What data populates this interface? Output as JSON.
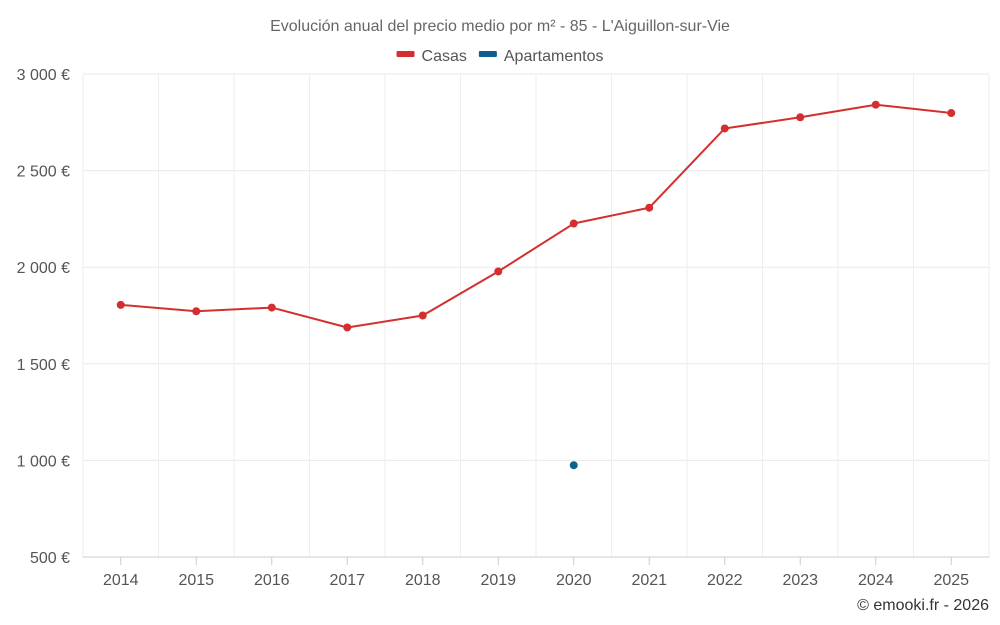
{
  "chart_data": {
    "type": "line",
    "title": "Evolución anual del precio medio por m² - 85 - L'Aiguillon-sur-Vie",
    "categories": [
      "2014",
      "2015",
      "2016",
      "2017",
      "2018",
      "2019",
      "2020",
      "2021",
      "2022",
      "2023",
      "2024",
      "2025"
    ],
    "y_tick_labels": [
      "500 €",
      "1 000 €",
      "1 500 €",
      "2 000 €",
      "2 500 €",
      "3 000 €"
    ],
    "y_tick_values": [
      500,
      1000,
      1500,
      2000,
      2500,
      3000
    ],
    "ylim": [
      500,
      3000
    ],
    "grid": true,
    "legend_position": "top-center",
    "series": [
      {
        "name": "Casas",
        "color": "#d32f2f",
        "values": [
          1805,
          1772,
          1791,
          1688,
          1750,
          1978,
          2226,
          2308,
          2718,
          2776,
          2841,
          2798
        ]
      },
      {
        "name": "Apartamentos",
        "color": "#0d5f8f",
        "values": [
          null,
          null,
          null,
          null,
          null,
          null,
          975,
          null,
          null,
          null,
          null,
          null
        ]
      }
    ],
    "credit": "© emooki.fr - 2026"
  }
}
